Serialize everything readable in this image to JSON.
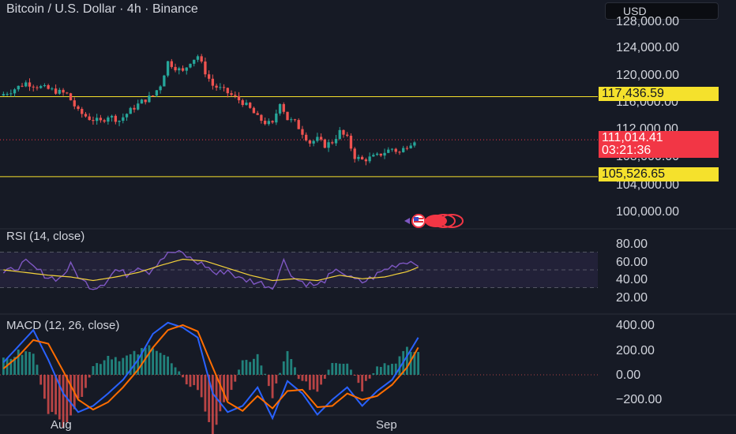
{
  "header": {
    "title": "Bitcoin / U.S. Dollar · 4h · Binance",
    "currency": "USD"
  },
  "price_axis": {
    "labels": [
      "128,000.00",
      "124,000.00",
      "120,000.00",
      "116,000.00",
      "112,000.00",
      "108,000.00",
      "104,000.00",
      "100,000.00"
    ]
  },
  "price_tags": {
    "upper_level": "117,436.59",
    "current_price": "111,014.41",
    "countdown": "03:21:36",
    "lower_level": "105,526.65"
  },
  "rsi": {
    "label": "RSI (14, close)",
    "axis": [
      "80.00",
      "60.00",
      "40.00",
      "20.00"
    ],
    "upper_band": 70,
    "lower_band": 30
  },
  "macd": {
    "label": "MACD (12, 26, close)",
    "axis": [
      "400.00",
      "200.00",
      "0.00",
      "−200.00"
    ]
  },
  "time_axis": {
    "labels": [
      "Aug",
      "Sep"
    ]
  },
  "colors": {
    "background": "#161a25",
    "bull": "#26a69a",
    "bear": "#ef5350",
    "level_line": "#f5e12c",
    "rsi_line": "#7e57c2",
    "rsi_ma": "#f5d33a",
    "macd_line": "#2962ff",
    "signal_line": "#ff6d00"
  },
  "icons": {
    "event_marker": "us-flag-economic-event-icon"
  },
  "chart_data": {
    "type": "candlestick",
    "symbol": "Bitcoin / U.S. Dollar",
    "interval": "4h",
    "exchange": "Binance",
    "price_ylim": [
      98000,
      129000
    ],
    "horizontal_levels": [
      117436.59,
      105526.65
    ],
    "last_price": 111014.41,
    "price_path": [
      [
        0,
        117600
      ],
      [
        3,
        118300
      ],
      [
        7,
        119500
      ],
      [
        10,
        119000
      ],
      [
        14,
        118400
      ],
      [
        18,
        117800
      ],
      [
        21,
        115200
      ],
      [
        24,
        114200
      ],
      [
        27,
        113700
      ],
      [
        29,
        114600
      ],
      [
        32,
        113900
      ],
      [
        35,
        115400
      ],
      [
        38,
        116700
      ],
      [
        41,
        117600
      ],
      [
        43,
        119200
      ],
      [
        45,
        122600
      ],
      [
        47,
        121800
      ],
      [
        49,
        121100
      ],
      [
        51,
        122700
      ],
      [
        53,
        123500
      ],
      [
        55,
        121100
      ],
      [
        57,
        119100
      ],
      [
        59,
        118600
      ],
      [
        61,
        118000
      ],
      [
        63,
        117300
      ],
      [
        65,
        116600
      ],
      [
        67,
        115600
      ],
      [
        69,
        114300
      ],
      [
        71,
        113600
      ],
      [
        73,
        113300
      ],
      [
        75,
        116700
      ],
      [
        77,
        114100
      ],
      [
        79,
        113600
      ],
      [
        81,
        112100
      ],
      [
        83,
        110600
      ],
      [
        85,
        111100
      ],
      [
        87,
        110200
      ],
      [
        89,
        110700
      ],
      [
        91,
        112200
      ],
      [
        93,
        111200
      ],
      [
        95,
        108500
      ],
      [
        97,
        108000
      ],
      [
        99,
        108300
      ],
      [
        101,
        108600
      ],
      [
        103,
        109200
      ],
      [
        105,
        109700
      ],
      [
        107,
        109100
      ],
      [
        109,
        110200
      ],
      [
        111,
        111000
      ]
    ],
    "rsi_path": [
      [
        0,
        45
      ],
      [
        3,
        52
      ],
      [
        6,
        58
      ],
      [
        9,
        50
      ],
      [
        12,
        42
      ],
      [
        15,
        40
      ],
      [
        18,
        55
      ],
      [
        21,
        38
      ],
      [
        24,
        30
      ],
      [
        27,
        36
      ],
      [
        30,
        50
      ],
      [
        33,
        45
      ],
      [
        36,
        55
      ],
      [
        39,
        48
      ],
      [
        42,
        62
      ],
      [
        45,
        70
      ],
      [
        48,
        68
      ],
      [
        51,
        60
      ],
      [
        54,
        55
      ],
      [
        57,
        45
      ],
      [
        60,
        50
      ],
      [
        63,
        40
      ],
      [
        66,
        38
      ],
      [
        69,
        35
      ],
      [
        72,
        30
      ],
      [
        75,
        60
      ],
      [
        78,
        40
      ],
      [
        81,
        35
      ],
      [
        84,
        32
      ],
      [
        87,
        42
      ],
      [
        90,
        50
      ],
      [
        93,
        40
      ],
      [
        96,
        36
      ],
      [
        99,
        42
      ],
      [
        102,
        50
      ],
      [
        105,
        56
      ],
      [
        108,
        60
      ],
      [
        111,
        58
      ]
    ],
    "rsi_ma_path": [
      [
        0,
        50
      ],
      [
        6,
        47
      ],
      [
        12,
        44
      ],
      [
        18,
        42
      ],
      [
        24,
        38
      ],
      [
        30,
        42
      ],
      [
        36,
        47
      ],
      [
        42,
        55
      ],
      [
        48,
        62
      ],
      [
        54,
        60
      ],
      [
        60,
        52
      ],
      [
        66,
        44
      ],
      [
        72,
        38
      ],
      [
        78,
        40
      ],
      [
        84,
        38
      ],
      [
        90,
        44
      ],
      [
        96,
        40
      ],
      [
        102,
        42
      ],
      [
        108,
        48
      ],
      [
        111,
        53
      ]
    ],
    "macd_path": [
      [
        0,
        100
      ],
      [
        4,
        230
      ],
      [
        8,
        360
      ],
      [
        12,
        120
      ],
      [
        16,
        -150
      ],
      [
        20,
        -300
      ],
      [
        24,
        -250
      ],
      [
        28,
        -150
      ],
      [
        32,
        -40
      ],
      [
        36,
        120
      ],
      [
        40,
        330
      ],
      [
        44,
        420
      ],
      [
        48,
        380
      ],
      [
        52,
        300
      ],
      [
        56,
        -150
      ],
      [
        60,
        -300
      ],
      [
        64,
        -250
      ],
      [
        68,
        -100
      ],
      [
        72,
        -350
      ],
      [
        76,
        -50
      ],
      [
        80,
        -150
      ],
      [
        84,
        -320
      ],
      [
        88,
        -200
      ],
      [
        92,
        -100
      ],
      [
        96,
        -250
      ],
      [
        100,
        -130
      ],
      [
        104,
        -40
      ],
      [
        108,
        150
      ],
      [
        111,
        300
      ]
    ],
    "signal_path": [
      [
        0,
        50
      ],
      [
        4,
        150
      ],
      [
        8,
        280
      ],
      [
        12,
        250
      ],
      [
        16,
        30
      ],
      [
        20,
        -200
      ],
      [
        24,
        -280
      ],
      [
        28,
        -220
      ],
      [
        32,
        -100
      ],
      [
        36,
        40
      ],
      [
        40,
        220
      ],
      [
        44,
        360
      ],
      [
        48,
        400
      ],
      [
        52,
        350
      ],
      [
        56,
        60
      ],
      [
        60,
        -220
      ],
      [
        64,
        -290
      ],
      [
        68,
        -170
      ],
      [
        72,
        -270
      ],
      [
        76,
        -130
      ],
      [
        80,
        -120
      ],
      [
        84,
        -260
      ],
      [
        88,
        -250
      ],
      [
        92,
        -150
      ],
      [
        96,
        -200
      ],
      [
        100,
        -170
      ],
      [
        104,
        -80
      ],
      [
        108,
        60
      ],
      [
        111,
        220
      ]
    ]
  }
}
